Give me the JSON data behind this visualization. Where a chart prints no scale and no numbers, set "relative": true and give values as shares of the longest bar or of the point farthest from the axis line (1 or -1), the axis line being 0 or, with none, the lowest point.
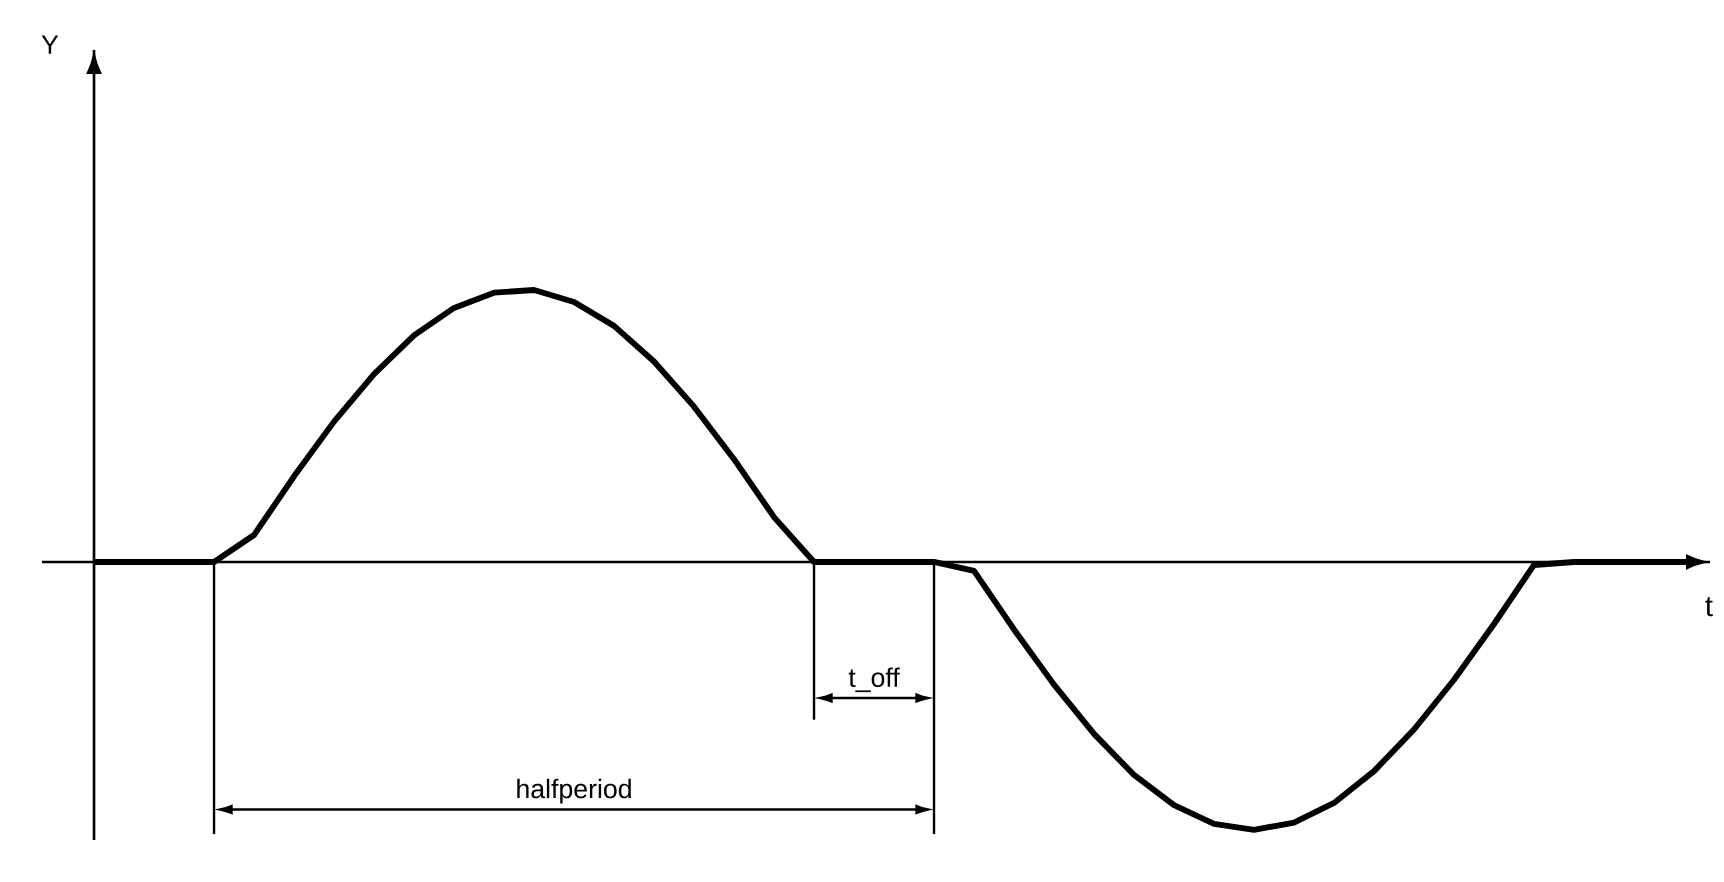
{
  "chart_data": {
    "type": "line",
    "relative": true,
    "xlabel": "t",
    "color": "#000000",
    "categories": [
      null,
      null,
      null,
      null,
      null,
      null,
      null,
      null,
      null,
      null,
      null,
      null,
      null,
      null,
      null,
      null,
      null,
      null,
      null,
      null,
      null,
      null,
      null,
      null,
      null,
      null,
      null,
      null,
      null,
      null,
      null,
      null,
      null,
      null,
      null,
      null,
      null,
      null,
      null,
      null,
      null
    ],
    "values": [
      0,
      0,
      0,
      0,
      0.099,
      0.315,
      0.516,
      0.691,
      0.833,
      0.934,
      0.99,
      1,
      0.956,
      0.868,
      0.737,
      0.571,
      0.378,
      0.165,
      0,
      0,
      0,
      0,
      -0.033,
      -0.248,
      -0.451,
      -0.632,
      -0.783,
      -0.894,
      -0.963,
      -0.985,
      -0.958,
      -0.886,
      -0.769,
      -0.616,
      -0.433,
      -0.228,
      -0.011,
      0,
      0,
      0,
      0
    ],
    "annotations": [
      "t_off",
      "halfperiod",
      "Y"
    ]
  }
}
